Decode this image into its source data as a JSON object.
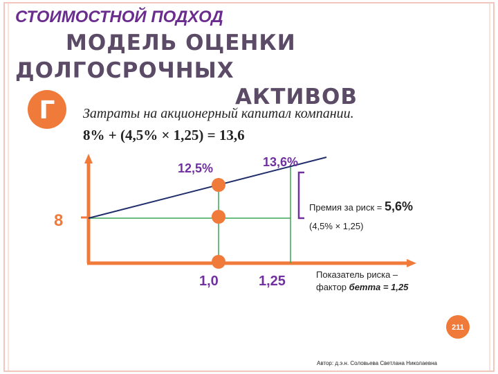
{
  "header": {
    "subtitle": "СТОИМОСТНОЙ ПОДХОД",
    "title_lines": [
      "МОДЕЛЬ ОЦЕНКИ",
      "ДОЛГОСРОЧНЫХ",
      "АКТИВОВ"
    ]
  },
  "badge": "Г",
  "formula": {
    "caption": "Затраты на акционерный капитал компании.",
    "expression": "8% + (4,5% × 1,25) = 13,6"
  },
  "diagram": {
    "y_labels": {
      "risk_free": "8",
      "market_return": "12,5%",
      "asset_return": "13,6%"
    },
    "x_labels": {
      "market_beta": "1,0",
      "asset_beta": "1,25"
    },
    "premium": {
      "label": "Премия за риск =",
      "value": "5,6%",
      "calculation": "(4,5% × 1,25)"
    },
    "x_axis_note": {
      "line1": "Показатель риска –",
      "prefix": "фактор",
      "value": "бетта = 1,25"
    }
  },
  "page_number": "211",
  "footer": "Автор: д.э.н. Соловьева Светлана Николаевна"
}
